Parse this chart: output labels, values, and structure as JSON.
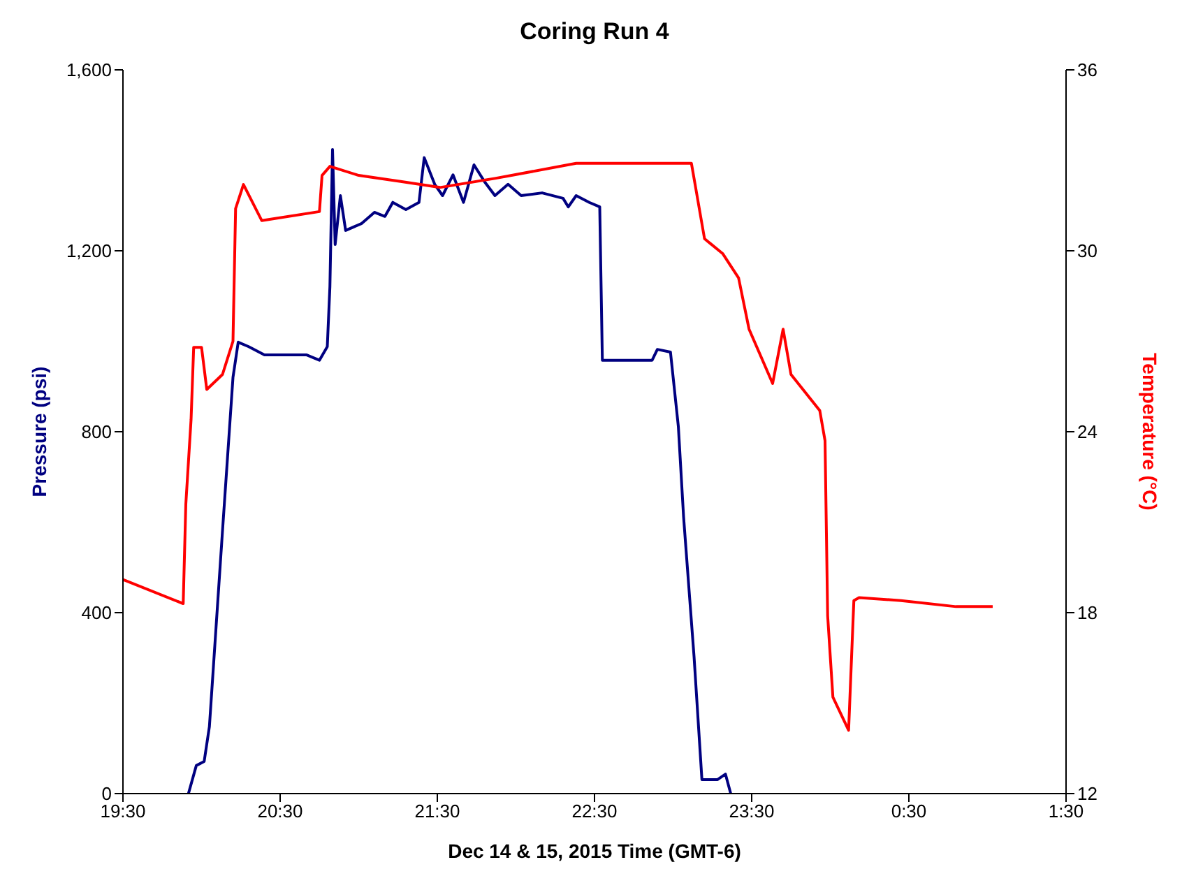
{
  "chart_data": {
    "type": "line",
    "title": "Coring Run 4",
    "xlabel": "Dec 14 & 15, 2015 Time (GMT-6)",
    "ylabel": "Pressure (psi)",
    "y2label": "Temperature (°C)",
    "xlim": [
      "2015-12-14T19:30",
      "2015-12-15T01:30"
    ],
    "xticks": [
      {
        "value": "2015-12-14T19:30",
        "label": "19:30"
      },
      {
        "value": "2015-12-14T20:30",
        "label": "20:30"
      },
      {
        "value": "2015-12-14T21:30",
        "label": "21:30"
      },
      {
        "value": "2015-12-14T22:30",
        "label": "22:30"
      },
      {
        "value": "2015-12-14T23:30",
        "label": "23:30"
      },
      {
        "value": "2015-12-15T00:30",
        "label": "0:30"
      },
      {
        "value": "2015-12-15T01:30",
        "label": "1:30"
      }
    ],
    "ylim": [
      0,
      1600
    ],
    "yticks": [
      {
        "value": 0,
        "label": "0"
      },
      {
        "value": 400,
        "label": "400"
      },
      {
        "value": 800,
        "label": "800"
      },
      {
        "value": 1200,
        "label": "1,200"
      },
      {
        "value": 1600,
        "label": "1,600"
      }
    ],
    "y2lim": [
      12,
      36
    ],
    "y2ticks": [
      12,
      18,
      24,
      30,
      36
    ],
    "grid": false,
    "marker": "none",
    "line_style": "solid",
    "series": [
      {
        "color": "#000080",
        "x": [
          "2015-12-14T19:55",
          "2015-12-14T19:58",
          "2015-12-14T20:01",
          "2015-12-14T20:03",
          "2015-12-14T20:08",
          "2015-12-14T20:12",
          "2015-12-14T20:14",
          "2015-12-14T20:18",
          "2015-12-14T20:24",
          "2015-12-14T20:40",
          "2015-12-14T20:45",
          "2015-12-14T20:48",
          "2015-12-14T20:49",
          "2015-12-14T20:50",
          "2015-12-14T20:51",
          "2015-12-14T20:53",
          "2015-12-14T20:55",
          "2015-12-14T21:01",
          "2015-12-14T21:06",
          "2015-12-14T21:10",
          "2015-12-14T21:13",
          "2015-12-14T21:18",
          "2015-12-14T21:23",
          "2015-12-14T21:25",
          "2015-12-14T21:29",
          "2015-12-14T21:32",
          "2015-12-14T21:36",
          "2015-12-14T21:40",
          "2015-12-14T21:44",
          "2015-12-14T21:48",
          "2015-12-14T21:52",
          "2015-12-14T21:57",
          "2015-12-14T22:02",
          "2015-12-14T22:10",
          "2015-12-14T22:18",
          "2015-12-14T22:20",
          "2015-12-14T22:23",
          "2015-12-14T22:28",
          "2015-12-14T22:32",
          "2015-12-14T22:33",
          "2015-12-14T22:52",
          "2015-12-14T22:54",
          "2015-12-14T22:59",
          "2015-12-14T23:02",
          "2015-12-14T23:04",
          "2015-12-14T23:08",
          "2015-12-14T23:11",
          "2015-12-14T23:17",
          "2015-12-14T23:20",
          "2015-12-14T23:22"
        ],
        "values": [
          0,
          62,
          71,
          148,
          581,
          920,
          998,
          988,
          970,
          970,
          958,
          988,
          1121,
          1424,
          1214,
          1322,
          1245,
          1260,
          1285,
          1276,
          1307,
          1291,
          1307,
          1406,
          1347,
          1322,
          1368,
          1307,
          1390,
          1353,
          1322,
          1347,
          1322,
          1328,
          1316,
          1297,
          1322,
          1307,
          1297,
          958,
          958,
          982,
          976,
          812,
          612,
          303,
          31,
          31,
          43,
          0
        ]
      },
      {
        "color": "#ff0000",
        "axis": "y2",
        "x": [
          "2015-12-14T19:30",
          "2015-12-14T19:53",
          "2015-12-14T19:54",
          "2015-12-14T19:56",
          "2015-12-14T19:57",
          "2015-12-14T20:00",
          "2015-12-14T20:02",
          "2015-12-14T20:08",
          "2015-12-14T20:12",
          "2015-12-14T20:13",
          "2015-12-14T20:16",
          "2015-12-14T20:23",
          "2015-12-14T20:45",
          "2015-12-14T20:46",
          "2015-12-14T20:49",
          "2015-12-14T21:00",
          "2015-12-14T21:16",
          "2015-12-14T21:31",
          "2015-12-14T21:52",
          "2015-12-14T22:23",
          "2015-12-14T22:49",
          "2015-12-14T23:07",
          "2015-12-14T23:12",
          "2015-12-14T23:19",
          "2015-12-14T23:25",
          "2015-12-14T23:29",
          "2015-12-14T23:38",
          "2015-12-14T23:42",
          "2015-12-14T23:45",
          "2015-12-14T23:56",
          "2015-12-14T23:58",
          "2015-12-14T23:59",
          "2015-12-15T00:01",
          "2015-12-15T00:07",
          "2015-12-15T00:09",
          "2015-12-15T00:11",
          "2015-12-15T00:27",
          "2015-12-15T00:48",
          "2015-12-15T01:02"
        ],
        "values": [
          19.1,
          18.3,
          21.6,
          24.4,
          26.8,
          26.8,
          25.4,
          25.9,
          27.0,
          31.4,
          32.2,
          31.0,
          31.3,
          32.5,
          32.8,
          32.5,
          32.3,
          32.1,
          32.4,
          32.9,
          32.9,
          32.9,
          30.4,
          29.9,
          29.1,
          27.4,
          25.6,
          27.4,
          25.9,
          24.7,
          23.7,
          17.9,
          15.2,
          14.1,
          18.4,
          18.5,
          18.4,
          18.2,
          18.2
        ]
      }
    ]
  }
}
